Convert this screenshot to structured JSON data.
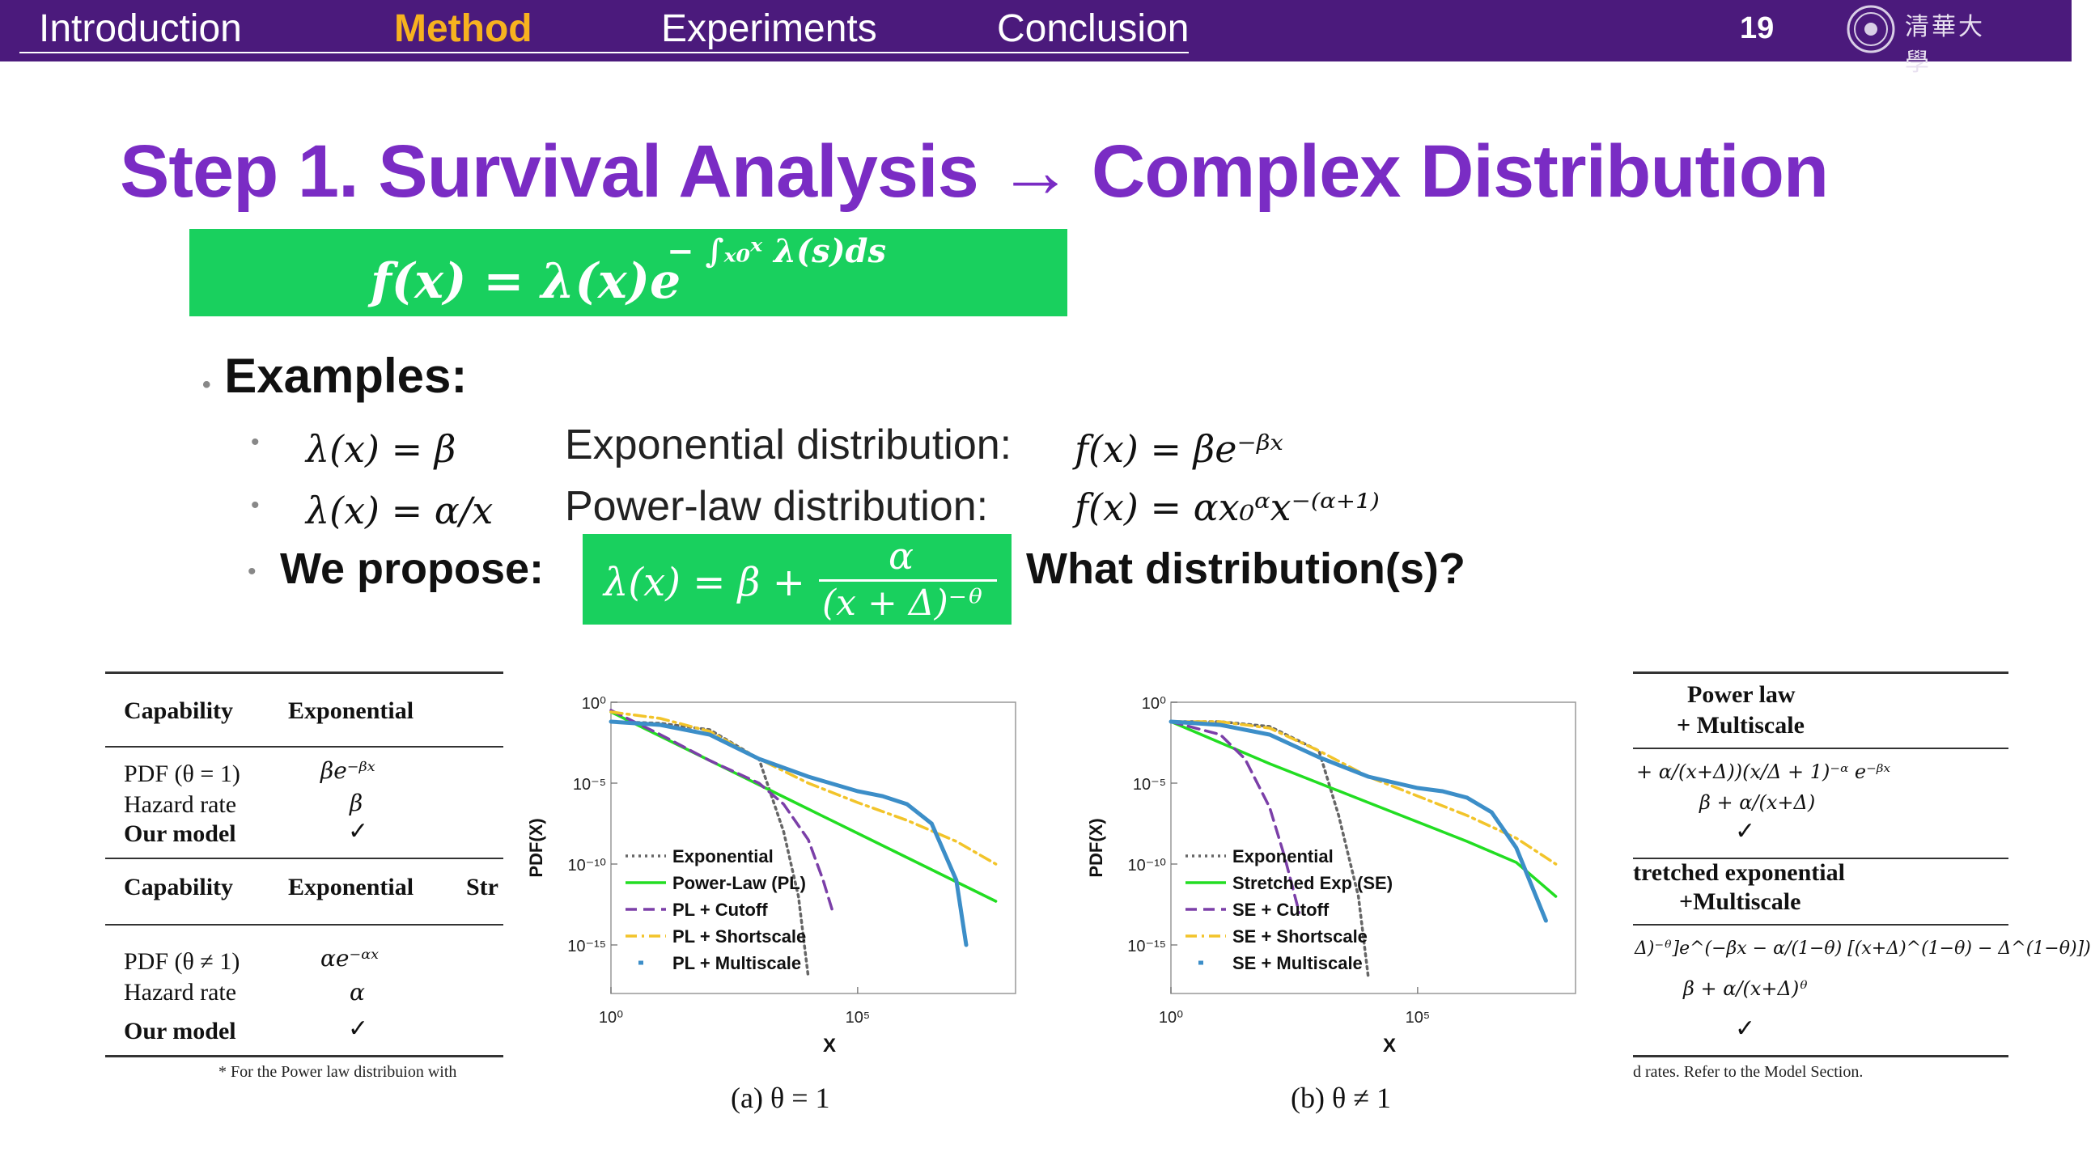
{
  "nav": {
    "items": [
      {
        "label": "Introduction"
      },
      {
        "label": "Method"
      },
      {
        "label": "Experiments"
      },
      {
        "label": "Conclusion"
      }
    ],
    "active": "Method",
    "page_number": "19",
    "logo_text": "清華大學"
  },
  "slide": {
    "title": "Step 1. Survival Analysis → Complex Distribution",
    "formula_main": "f(x) = λ(x)e",
    "formula_main_exponent": "− ∫ₓ₀ˣ λ(s)ds",
    "examples_heading": "Examples:",
    "examples": [
      {
        "hazard": "λ(x) = β",
        "name": "Exponential distribution:",
        "pdf": "f(x) = βe⁻ᵝˣ"
      },
      {
        "hazard": "λ(x) = α/x",
        "name": "Power-law   distribution:",
        "pdf": "f(x) = αx₀ᵅx⁻⁽ᵅ⁺¹⁾"
      }
    ],
    "propose_label": "We propose:",
    "proposal_lhs": "λ(x) = β +",
    "proposal_num": "α",
    "proposal_den": "(x + Δ)⁻ᶿ",
    "question": "What distribution(s)?"
  },
  "left_table": {
    "header1": [
      "Capability",
      "Exponential"
    ],
    "rows1": [
      [
        "PDF (θ = 1)",
        "βe⁻ᵝˣ"
      ],
      [
        "Hazard rate",
        "β"
      ],
      [
        "Our model",
        "✓"
      ]
    ],
    "header2": [
      "Capability",
      "Exponential",
      "Str"
    ],
    "rows2": [
      [
        "PDF (θ ≠ 1)",
        "αe⁻ᵅˣ"
      ],
      [
        "Hazard rate",
        "α"
      ],
      [
        "Our model",
        "✓"
      ]
    ],
    "footnote": "* For the Power law distribuion with"
  },
  "right_table": {
    "header1": [
      "Power law",
      "+ Multiscale"
    ],
    "row1_pdf": "+ α/(x+Δ))(x/Δ + 1)⁻ᵅ e⁻ᵝˣ",
    "row1_hazard": "β + α/(x+Δ)",
    "row1_check": "✓",
    "header2": [
      "tretched exponential",
      "+Multiscale"
    ],
    "row2_pdf": "Δ)⁻ᶿ]e^(−βx − α/(1−θ) [(x+Δ)^(1−θ) − Δ^(1−θ)])",
    "row2_hazard": "β + α/(x+Δ)ᶿ",
    "row2_check": "✓",
    "footnote": "d rates. Refer to the Model Section."
  },
  "chart_data": [
    {
      "type": "line",
      "caption": "(a)  θ = 1",
      "xlabel": "X",
      "ylabel": "PDF(X)",
      "x_scale": "log",
      "y_scale": "log",
      "xticks": [
        "10⁰",
        "10⁵"
      ],
      "yticks": [
        "10⁰",
        "10⁻⁵",
        "10⁻¹⁰",
        "10⁻¹⁵"
      ],
      "legend": "bottom-left",
      "series": [
        {
          "name": "Exponential",
          "color": "#666666",
          "style": "dotted",
          "x": [
            0,
            1,
            2,
            3,
            3.5,
            3.8,
            4.0
          ],
          "y": [
            -1.2,
            -1.3,
            -1.7,
            -3.5,
            -8,
            -12,
            -17
          ]
        },
        {
          "name": "Power-Law (PL)",
          "color": "#22dd22",
          "style": "solid",
          "x": [
            0,
            1,
            2,
            3,
            4,
            5,
            6,
            7,
            7.8
          ],
          "y": [
            -0.6,
            -2.1,
            -3.6,
            -5.1,
            -6.6,
            -8.1,
            -9.6,
            -11.1,
            -12.3
          ]
        },
        {
          "name": "PL + Cutoff",
          "color": "#7b3fa8",
          "style": "dashed",
          "x": [
            0,
            1,
            2,
            3,
            3.5,
            4.0,
            4.3,
            4.5
          ],
          "y": [
            -0.5,
            -2.0,
            -3.6,
            -5.0,
            -6.3,
            -8.5,
            -11,
            -13
          ]
        },
        {
          "name": "PL + Shortscale",
          "color": "#f2c42a",
          "style": "dashdot",
          "x": [
            0,
            1,
            2,
            3,
            4,
            5,
            6,
            7,
            7.8
          ],
          "y": [
            -0.6,
            -1.0,
            -1.8,
            -3.5,
            -5.0,
            -6.2,
            -7.3,
            -8.6,
            -10.0
          ]
        },
        {
          "name": "PL + Multiscale",
          "color": "#3c8ec8",
          "style": "solid",
          "x": [
            0,
            1,
            2,
            3,
            4,
            5,
            5.5,
            6,
            6.5,
            7.0,
            7.2
          ],
          "y": [
            -1.2,
            -1.4,
            -2.0,
            -3.5,
            -4.6,
            -5.5,
            -5.8,
            -6.3,
            -7.5,
            -11,
            -15
          ]
        }
      ]
    },
    {
      "type": "line",
      "caption": "(b)  θ ≠ 1",
      "xlabel": "X",
      "ylabel": "PDF(X)",
      "x_scale": "log",
      "y_scale": "log",
      "xticks": [
        "10⁰",
        "10⁵"
      ],
      "yticks": [
        "10⁰",
        "10⁻⁵",
        "10⁻¹⁰",
        "10⁻¹⁵"
      ],
      "legend": "bottom-left",
      "series": [
        {
          "name": "Exponential",
          "color": "#666666",
          "style": "dotted",
          "x": [
            0,
            1,
            2,
            3,
            3.4,
            3.8,
            4.0
          ],
          "y": [
            -1.2,
            -1.2,
            -1.5,
            -3.0,
            -7,
            -12,
            -17
          ]
        },
        {
          "name": "Stretched Exp (SE)",
          "color": "#22dd22",
          "style": "solid",
          "x": [
            0,
            1,
            2,
            3,
            4,
            5,
            6,
            7,
            7.8
          ],
          "y": [
            -1.2,
            -2.5,
            -3.8,
            -5.0,
            -6.2,
            -7.4,
            -8.6,
            -9.9,
            -12.0
          ]
        },
        {
          "name": "SE + Cutoff",
          "color": "#7b3fa8",
          "style": "dashed",
          "x": [
            0,
            1,
            1.5,
            2.0,
            2.3,
            2.6
          ],
          "y": [
            -1.2,
            -2.0,
            -3.5,
            -6.5,
            -9.5,
            -13
          ]
        },
        {
          "name": "SE + Shortscale",
          "color": "#f2c42a",
          "style": "dashdot",
          "x": [
            0,
            1,
            2,
            3,
            4,
            5,
            6,
            7,
            7.8
          ],
          "y": [
            -1.2,
            -1.2,
            -1.6,
            -3.0,
            -4.6,
            -5.8,
            -7.0,
            -8.4,
            -10.0
          ]
        },
        {
          "name": "SE + Multiscale",
          "color": "#3c8ec8",
          "style": "solid",
          "x": [
            0,
            1,
            2,
            3,
            4,
            5,
            5.5,
            6,
            6.5,
            7.0,
            7.6
          ],
          "y": [
            -1.2,
            -1.4,
            -2.0,
            -3.4,
            -4.6,
            -5.3,
            -5.5,
            -5.9,
            -6.8,
            -9.0,
            -13.5
          ]
        }
      ]
    }
  ]
}
